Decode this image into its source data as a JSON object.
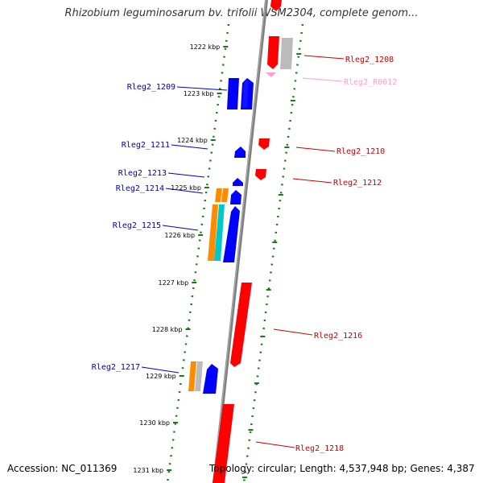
{
  "title": "Rhizobium leguminosarum bv. trifolii WSM2304, complete genom...",
  "accession_label": "Accession: NC_011369",
  "topology_label": "Topology: circular; Length: 4,537,948 bp; Genes: 4,387",
  "colors": {
    "backbone": "#808080",
    "ruler": "#1a7a1a",
    "forward": "#0000ff",
    "reverse": "#ff0000",
    "rna": "#ff9ec8",
    "pseudo": "#bbbbbb",
    "orange": "#ff8c00",
    "cyan": "#00c8c8"
  },
  "ruler_labels": [
    "1222 kbp",
    "1223 kbp",
    "1224 kbp",
    "1225 kbp",
    "1226 kbp",
    "1227 kbp",
    "1228 kbp",
    "1229 kbp",
    "1230 kbp",
    "1231 kbp"
  ],
  "gene_labels_left": [
    "Rleg2_1209",
    "Rleg2_1211",
    "Rleg2_1213",
    "Rleg2_1214",
    "Rleg2_1215",
    "Rleg2_1217"
  ],
  "gene_labels_right": [
    "Rleg2_1208",
    "Rleg2_R0012",
    "Rleg2_1210",
    "Rleg2_1212",
    "Rleg2_1216",
    "Rleg2_1218"
  ]
}
